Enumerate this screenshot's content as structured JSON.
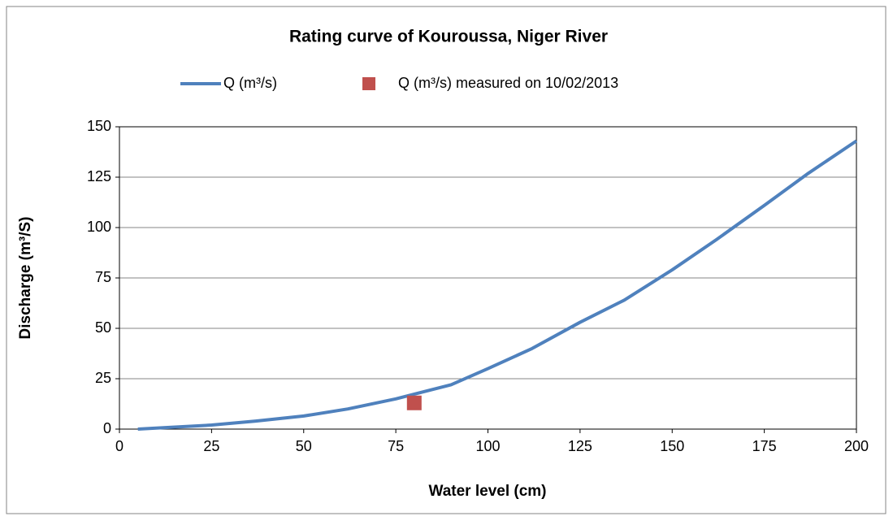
{
  "chart_data": {
    "type": "line",
    "title": "Rating curve of Kouroussa, Niger River",
    "xlabel": "Water level (cm)",
    "ylabel": "Discharge (m³/S)",
    "xlim": [
      0,
      200
    ],
    "xticks": [
      0,
      25,
      50,
      75,
      100,
      125,
      150,
      175,
      200
    ],
    "ylim": [
      0,
      150
    ],
    "yticks": [
      0,
      25,
      50,
      75,
      100,
      125,
      150
    ],
    "grid": true,
    "legend": "top",
    "series": [
      {
        "name": "Q (m³/s)",
        "color": "#4f81bd",
        "type": "line",
        "x": [
          5,
          10,
          25,
          37,
          50,
          62,
          75,
          90,
          100,
          112,
          125,
          137,
          150,
          162,
          175,
          187,
          200
        ],
        "values": [
          0,
          0.5,
          2,
          4,
          6.5,
          10,
          15,
          22,
          30,
          40,
          53,
          64,
          79,
          94,
          111,
          127,
          143
        ]
      },
      {
        "name": "Q (m³/s) measured on 10/02/2013",
        "color": "#c0504d",
        "type": "scatter",
        "x": [
          80
        ],
        "values": [
          13
        ]
      }
    ]
  }
}
